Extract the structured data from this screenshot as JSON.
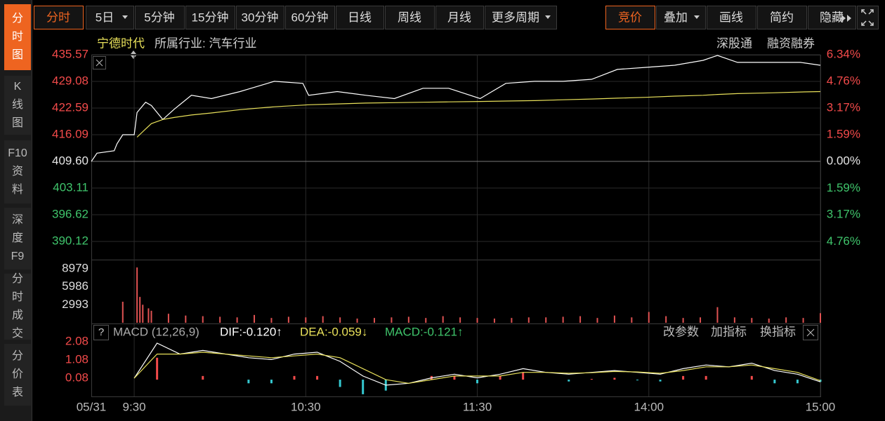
{
  "sidebar": {
    "active": 0,
    "tabs": [
      {
        "lines": [
          "分",
          "时",
          "图"
        ]
      },
      {
        "lines": [
          "K",
          "线",
          "图"
        ]
      },
      {
        "lines": [
          "F10",
          "资",
          "料"
        ]
      },
      {
        "lines": [
          "深",
          "度",
          "F9"
        ]
      },
      {
        "lines": [
          "分",
          "时",
          "成",
          "交"
        ]
      },
      {
        "lines": [
          "分",
          "价",
          "表"
        ]
      }
    ]
  },
  "toolbar": {
    "active_left": 0,
    "active_right": 0,
    "left": [
      "分时",
      "5日",
      "5分钟",
      "15分钟",
      "30分钟",
      "60分钟",
      "日线",
      "周线",
      "月线",
      "更多周期"
    ],
    "right": [
      "竞价",
      "叠加",
      "画线",
      "简约",
      "隐藏"
    ]
  },
  "chart_data": [
    {
      "type": "line",
      "stock": "宁德时代",
      "industry": "所属行业: 汽车行业",
      "badges": [
        "深股通",
        "融资融券"
      ],
      "date": "05/31",
      "x": [
        -15,
        -13,
        -7,
        -6,
        -4,
        0,
        1,
        4,
        6,
        10,
        14,
        20,
        27,
        37,
        49,
        59,
        61,
        71,
        81,
        91,
        101,
        110,
        121,
        130,
        140,
        150,
        160,
        169,
        179,
        189,
        199,
        204,
        211,
        223,
        233,
        240
      ],
      "xlim": [
        -15,
        240
      ],
      "xticks": [
        {
          "value": 0,
          "label": "9:30"
        },
        {
          "value": 60,
          "label": "10:30"
        },
        {
          "value": 120,
          "label": "11:30"
        },
        {
          "value": 180,
          "label": "14:00"
        },
        {
          "value": 240,
          "label": "15:00"
        }
      ],
      "ylim": [
        385.7,
        435.57
      ],
      "yticks": [
        435.57,
        429.08,
        422.59,
        416.09,
        {
          "value": 409.6,
          "label": "409.60"
        },
        403.11,
        396.62,
        390.12
      ],
      "y2lim": [
        -5.83,
        6.34
      ],
      "y2ticks": [
        {
          "value": 6.34,
          "label": "6.34%"
        },
        {
          "value": 4.76,
          "label": "4.76%"
        },
        {
          "value": 3.17,
          "label": "3.17%"
        },
        {
          "value": 1.59,
          "label": "1.59%"
        },
        {
          "value": 0,
          "label": "0.00%"
        },
        {
          "value": -1.59,
          "label": "1.59%"
        },
        {
          "value": -3.17,
          "label": "3.17%"
        },
        {
          "value": -4.76,
          "label": "4.76%"
        }
      ],
      "grid": true,
      "up_color": "#f24a4a",
      "down_color": "#3fc46b",
      "flat_color": "#e6e6e6",
      "series": [
        {
          "color": "#ffffff",
          "values": [
            409.6,
            411.6,
            412.2,
            413.9,
            416.1,
            416.1,
            421.5,
            424.0,
            423.2,
            419.8,
            422.3,
            425.7,
            424.9,
            426.6,
            429.1,
            428.6,
            425.7,
            426.6,
            425.7,
            424.9,
            427.4,
            427.4,
            424.9,
            428.6,
            429.1,
            429.1,
            429.6,
            432.0,
            432.5,
            433.0,
            434.2,
            435.4,
            433.7,
            433.7,
            433.7,
            433.0
          ]
        },
        {
          "color": "#e8e05a",
          "values": [
            null,
            null,
            null,
            null,
            null,
            null,
            415.5,
            417.5,
            418.8,
            419.8,
            420.3,
            420.9,
            421.4,
            422.2,
            422.9,
            423.3,
            423.4,
            423.6,
            423.8,
            423.9,
            424.0,
            424.1,
            424.2,
            424.3,
            424.4,
            424.6,
            424.8,
            425.0,
            425.2,
            425.5,
            425.7,
            425.9,
            426.1,
            426.3,
            426.5,
            426.6
          ]
        }
      ]
    },
    {
      "type": "bar",
      "color": "#e05252",
      "x": [
        -4,
        1,
        2,
        3,
        5,
        6,
        12,
        18,
        24,
        30,
        36,
        42,
        48,
        54,
        60,
        66,
        72,
        78,
        84,
        90,
        96,
        102,
        108,
        114,
        120,
        126,
        132,
        138,
        144,
        150,
        156,
        162,
        168,
        174,
        180,
        186,
        192,
        198,
        204,
        210,
        216,
        222,
        228,
        234,
        240
      ],
      "values": [
        3500,
        9200,
        4300,
        3000,
        2400,
        2000,
        1500,
        1200,
        1100,
        1000,
        900,
        1300,
        800,
        1000,
        900,
        1100,
        900,
        700,
        800,
        900,
        1000,
        800,
        1100,
        900,
        800,
        700,
        800,
        900,
        900,
        1000,
        1100,
        800,
        1200,
        900,
        1800,
        1100,
        800,
        900,
        2600,
        900,
        800,
        700,
        900,
        800,
        1600
      ],
      "ylim": [
        0,
        10270
      ],
      "yticks": [
        8979,
        5986,
        2993
      ]
    },
    {
      "type": "macd",
      "help": "?",
      "title": "MACD (12,26,9)",
      "readouts": [
        {
          "text": "DIF:-0.120↑",
          "color": "#ffffff"
        },
        {
          "text": "DEA:-0.059↓",
          "color": "#e8e05a"
        },
        {
          "text": "MACD:-0.121↑",
          "color": "#3fc46b"
        }
      ],
      "buttons": [
        "改参数",
        "加指标",
        "换指标"
      ],
      "x": [
        0,
        8,
        16,
        24,
        32,
        40,
        48,
        56,
        64,
        72,
        80,
        88,
        96,
        104,
        112,
        120,
        128,
        136,
        144,
        152,
        160,
        168,
        176,
        184,
        192,
        200,
        208,
        216,
        224,
        232,
        240
      ],
      "ylim": [
        -0.92,
        3.0
      ],
      "yticks": [
        2.08,
        1.08,
        0.08
      ],
      "series": [
        {
          "color": "#ffffff",
          "values": [
            0.08,
            2.0,
            1.4,
            1.6,
            1.4,
            1.2,
            1.1,
            1.4,
            1.5,
            1.0,
            0.2,
            -0.3,
            -0.2,
            0.1,
            0.3,
            0.1,
            0.3,
            0.6,
            0.4,
            0.3,
            0.4,
            0.5,
            0.4,
            0.3,
            0.6,
            0.8,
            0.7,
            0.9,
            0.5,
            0.3,
            -0.12
          ]
        },
        {
          "color": "#e8e05a",
          "values": [
            0.08,
            1.4,
            1.4,
            1.5,
            1.4,
            1.3,
            1.2,
            1.3,
            1.4,
            1.2,
            0.6,
            0.0,
            -0.2,
            0.0,
            0.2,
            0.2,
            0.2,
            0.4,
            0.4,
            0.35,
            0.38,
            0.45,
            0.42,
            0.35,
            0.5,
            0.7,
            0.7,
            0.8,
            0.6,
            0.4,
            -0.059
          ]
        }
      ],
      "histogram": {
        "up_color": "#f24a4a",
        "down_color": "#35c8d0",
        "values": [
          0.0,
          1.2,
          0.0,
          0.2,
          0.0,
          -0.2,
          -0.2,
          0.2,
          0.2,
          -0.4,
          -0.8,
          -0.6,
          0.0,
          0.2,
          0.2,
          -0.2,
          0.2,
          0.4,
          0.0,
          -0.1,
          0.04,
          0.1,
          -0.04,
          -0.1,
          0.2,
          0.2,
          0.0,
          0.2,
          -0.2,
          -0.2,
          -0.121
        ]
      }
    }
  ]
}
